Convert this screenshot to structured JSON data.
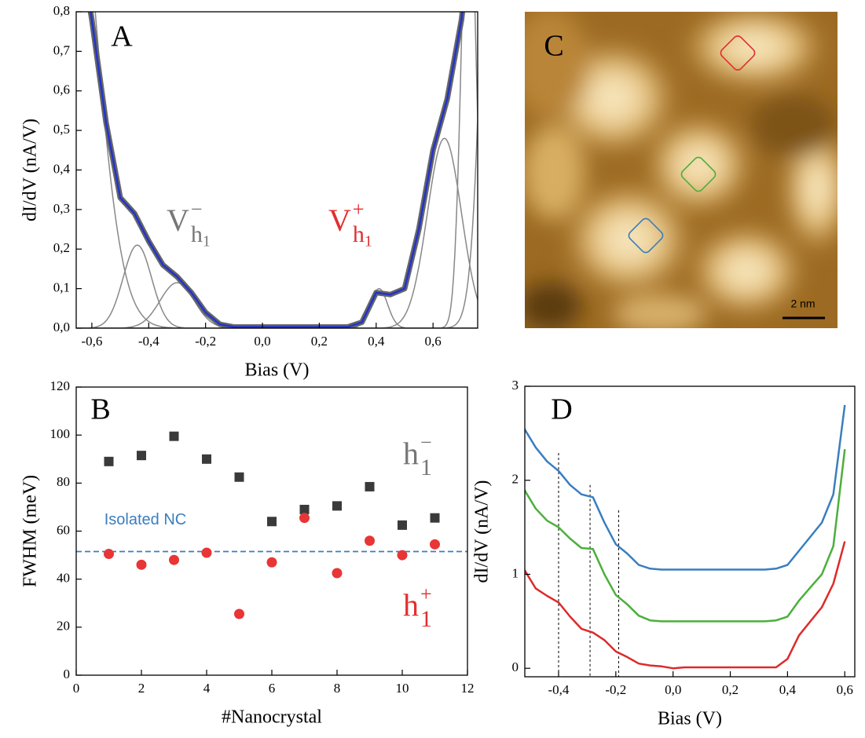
{
  "chart_data": [
    {
      "type": "line",
      "panel_label": "A",
      "x_label": "Bias (V)",
      "y_label": "dI/dV (nA/V)",
      "xlim": [
        -0.655,
        0.757
      ],
      "ylim": [
        0,
        0.8
      ],
      "xticks": [
        {
          "value": -0.6,
          "label": "-0,6"
        },
        {
          "value": -0.4,
          "label": "-0,4"
        },
        {
          "value": -0.2,
          "label": "-0,2"
        },
        {
          "value": 0,
          "label": "0,0"
        },
        {
          "value": 0.2,
          "label": "0,2"
        },
        {
          "value": 0.4,
          "label": "0,4"
        },
        {
          "value": 0.6,
          "label": "0,6"
        }
      ],
      "yticks": [
        {
          "value": 0,
          "label": "0,0"
        },
        {
          "value": 0.1,
          "label": "0,1"
        },
        {
          "value": 0.2,
          "label": "0,2"
        },
        {
          "value": 0.3,
          "label": "0,3"
        },
        {
          "value": 0.4,
          "label": "0,4"
        },
        {
          "value": 0.5,
          "label": "0,5"
        },
        {
          "value": 0.6,
          "label": "0,6"
        },
        {
          "value": 0.7,
          "label": "0,7"
        },
        {
          "value": 0.8,
          "label": "0,8"
        }
      ],
      "x": [
        -0.65,
        -0.6,
        -0.55,
        -0.5,
        -0.45,
        -0.4,
        -0.35,
        -0.3,
        -0.25,
        -0.2,
        -0.15,
        -0.1,
        -0.05,
        0,
        0.05,
        0.1,
        0.15,
        0.2,
        0.25,
        0.3,
        0.35,
        0.4,
        0.45,
        0.5,
        0.55,
        0.6,
        0.65,
        0.7,
        0.75
      ],
      "series": [
        {
          "color": "#666666",
          "width": 7,
          "values": [
            1.0,
            0.78,
            0.52,
            0.33,
            0.29,
            0.22,
            0.16,
            0.13,
            0.09,
            0.04,
            0.01,
            0.003,
            0.003,
            0.003,
            0.003,
            0.003,
            0.003,
            0.003,
            0.003,
            0.003,
            0.015,
            0.09,
            0.085,
            0.1,
            0.25,
            0.45,
            0.58,
            0.78,
            1.1
          ]
        },
        {
          "color": "#2233cc",
          "width": 2.5,
          "values": [
            1.0,
            0.78,
            0.52,
            0.33,
            0.29,
            0.22,
            0.16,
            0.13,
            0.09,
            0.04,
            0.01,
            0.003,
            0.003,
            0.003,
            0.003,
            0.003,
            0.003,
            0.003,
            0.003,
            0.003,
            0.015,
            0.09,
            0.085,
            0.1,
            0.25,
            0.45,
            0.58,
            0.78,
            1.1
          ]
        }
      ],
      "components_color": "#888888",
      "components": [
        {
          "center": -0.7,
          "amplitude": 1.5,
          "sigma": 0.1
        },
        {
          "center": -0.44,
          "amplitude": 0.21,
          "sigma": 0.05
        },
        {
          "center": -0.3,
          "amplitude": 0.115,
          "sigma": 0.06
        },
        {
          "center": 0.41,
          "amplitude": 0.1,
          "sigma": 0.03
        },
        {
          "center": 0.64,
          "amplitude": 0.48,
          "sigma": 0.06
        },
        {
          "center": 0.725,
          "amplitude": 1.2,
          "sigma": 0.025
        },
        {
          "center": 0.85,
          "amplitude": 3,
          "sigma": 0.05
        }
      ],
      "annotations": [
        {
          "text": "V",
          "sup": "−",
          "sub": "h",
          "sub_index": "1",
          "color": "#777777"
        },
        {
          "text": "V",
          "sup": "+",
          "sub": "h",
          "sub_index": "1",
          "color": "#e03030"
        }
      ]
    },
    {
      "type": "scatter",
      "panel_label": "B",
      "x_label": "#Nanocrystal",
      "y_label": "FWHM (meV)",
      "xlim": [
        0,
        12
      ],
      "ylim": [
        0,
        120
      ],
      "xticks": [
        0,
        2,
        4,
        6,
        8,
        10,
        12
      ],
      "yticks": [
        0,
        20,
        40,
        60,
        80,
        100,
        120
      ],
      "x": [
        1,
        2,
        3,
        4,
        5,
        6,
        7,
        8,
        9,
        10,
        11
      ],
      "series": [
        {
          "color": "#3a3a3a",
          "marker": "square",
          "values": [
            89,
            91.5,
            99.5,
            90,
            82.5,
            64,
            69,
            70.5,
            78.5,
            62.5,
            65.5
          ]
        },
        {
          "color": "#e83535",
          "marker": "circle",
          "values": [
            50.5,
            46,
            48,
            51,
            25.5,
            47,
            65.5,
            42.5,
            56,
            50,
            54.5
          ]
        }
      ],
      "reference_line": {
        "value": 51.5,
        "label": "Isolated NC",
        "color": "#3a7ebf"
      },
      "annotations": [
        {
          "text": "h",
          "sup": "−",
          "sub": "1",
          "color": "#777777"
        },
        {
          "text": "h",
          "sup": "+",
          "sub": "1",
          "color": "#e03030"
        }
      ]
    },
    {
      "type": "image",
      "panel_label": "C",
      "scale_bar": "2 nm"
    },
    {
      "type": "line",
      "panel_label": "D",
      "x_label": "Bias (V)",
      "y_label": "dI/dV (nA/V)",
      "xlim": [
        -0.518,
        0.635
      ],
      "ylim": [
        -0.09,
        3
      ],
      "xticks": [
        {
          "value": -0.4,
          "label": "-0,4"
        },
        {
          "value": -0.2,
          "label": "-0,2"
        },
        {
          "value": 0,
          "label": "0,0"
        },
        {
          "value": 0.2,
          "label": "0,2"
        },
        {
          "value": 0.4,
          "label": "0,4"
        },
        {
          "value": 0.6,
          "label": "0,6"
        }
      ],
      "yticks": [
        0,
        1,
        2,
        3
      ],
      "x": [
        -0.52,
        -0.48,
        -0.44,
        -0.4,
        -0.36,
        -0.32,
        -0.28,
        -0.24,
        -0.2,
        -0.16,
        -0.12,
        -0.08,
        -0.04,
        0,
        0.04,
        0.08,
        0.12,
        0.16,
        0.2,
        0.24,
        0.28,
        0.32,
        0.36,
        0.4,
        0.44,
        0.48,
        0.52,
        0.56,
        0.6
      ],
      "series": [
        {
          "color": "#3a7ebf",
          "width": 2.5,
          "values": [
            2.55,
            2.35,
            2.2,
            2.1,
            1.95,
            1.85,
            1.82,
            1.55,
            1.32,
            1.22,
            1.1,
            1.06,
            1.05,
            1.05,
            1.05,
            1.05,
            1.05,
            1.05,
            1.05,
            1.05,
            1.05,
            1.05,
            1.06,
            1.1,
            1.25,
            1.4,
            1.55,
            1.85,
            2.8
          ]
        },
        {
          "color": "#4caf3c",
          "width": 2.5,
          "values": [
            1.9,
            1.7,
            1.57,
            1.5,
            1.38,
            1.28,
            1.27,
            1.0,
            0.78,
            0.68,
            0.56,
            0.51,
            0.5,
            0.5,
            0.5,
            0.5,
            0.5,
            0.5,
            0.5,
            0.5,
            0.5,
            0.5,
            0.51,
            0.55,
            0.72,
            0.86,
            1.0,
            1.3,
            2.33
          ]
        },
        {
          "color": "#dd2a2a",
          "width": 2.5,
          "values": [
            1.05,
            0.85,
            0.77,
            0.7,
            0.55,
            0.42,
            0.38,
            0.3,
            0.18,
            0.12,
            0.05,
            0.03,
            0.02,
            0.0,
            0.01,
            0.01,
            0.01,
            0.01,
            0.01,
            0.01,
            0.01,
            0.01,
            0.01,
            0.1,
            0.35,
            0.5,
            0.65,
            0.9,
            1.35
          ]
        }
      ],
      "guide_lines": [
        {
          "x": -0.4,
          "top": 2.29
        },
        {
          "x": -0.29,
          "top": 1.95
        },
        {
          "x": -0.19,
          "top": 1.68
        }
      ]
    }
  ]
}
